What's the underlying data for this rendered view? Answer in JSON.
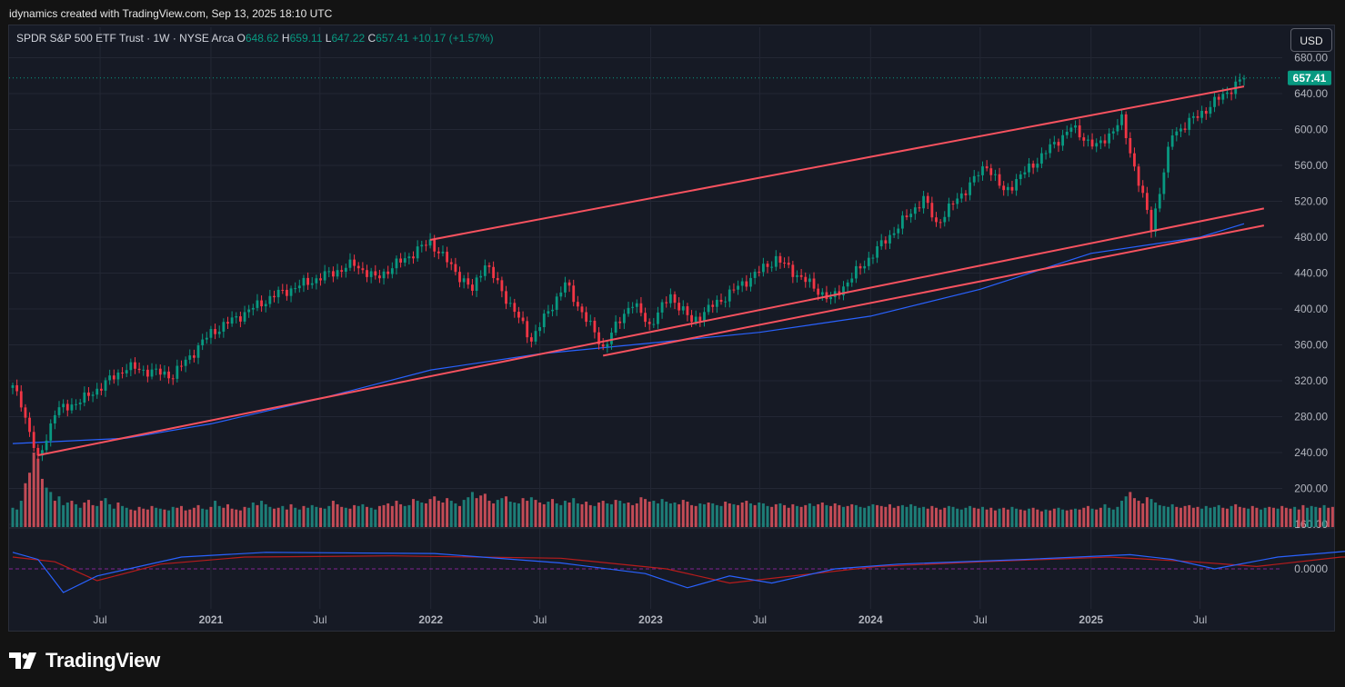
{
  "credit": "idynamics created with TradingView.com, Sep 13, 2025 18:10 UTC",
  "brand": {
    "name": "TradingView",
    "logo_icon": "tradingview-logo-icon"
  },
  "legend": {
    "title": "SPDR S&P 500 ETF Trust · 1W · NYSE Arca",
    "o_label": "O",
    "o": "648.62",
    "h_label": "H",
    "h": "659.11",
    "l_label": "L",
    "l": "647.22",
    "c_label": "C",
    "c": "657.41",
    "change": "+10.17 (+1.57%)"
  },
  "currency_button": "USD",
  "colors": {
    "up": "#089981",
    "down": "#f23645",
    "ma": "#2962ff",
    "trend": "#f7525f",
    "macd": "#2962ff",
    "signal": "#b71c1c",
    "background": "#161a25"
  },
  "chart_data": {
    "type": "candlestick",
    "interval": "1W",
    "y_ticks": [
      680,
      640,
      600,
      560,
      520,
      480,
      440,
      400,
      360,
      320,
      280,
      240,
      200,
      160
    ],
    "y_tick_labels": [
      "680.00",
      "640.00",
      "600.00",
      "560.00",
      "520.00",
      "480.00",
      "440.00",
      "400.00",
      "360.00",
      "320.00",
      "280.00",
      "240.00",
      "200.00",
      "160.00"
    ],
    "last_price": 657.41,
    "last_price_label": "657.41",
    "zero_tick_label": "0.0000",
    "x_ticks": [
      {
        "label": "Jul",
        "date": "2020-07"
      },
      {
        "label": "2021",
        "date": "2021-01"
      },
      {
        "label": "Jul",
        "date": "2021-07"
      },
      {
        "label": "2022",
        "date": "2022-01"
      },
      {
        "label": "Jul",
        "date": "2022-07"
      },
      {
        "label": "2023",
        "date": "2023-01"
      },
      {
        "label": "Jul",
        "date": "2023-07"
      },
      {
        "label": "2024",
        "date": "2024-01"
      },
      {
        "label": "Jul",
        "date": "2024-07"
      },
      {
        "label": "2025",
        "date": "2025-01"
      },
      {
        "label": "Jul",
        "date": "2025-07"
      }
    ],
    "price_path": [
      [
        "2020-02-07",
        312
      ],
      [
        "2020-02-21",
        296
      ],
      [
        "2020-03-20",
        230
      ],
      [
        "2020-04-17",
        285
      ],
      [
        "2020-06-05",
        300
      ],
      [
        "2020-08-14",
        335
      ],
      [
        "2020-10-30",
        326
      ],
      [
        "2020-12-31",
        373
      ],
      [
        "2021-04-16",
        415
      ],
      [
        "2021-08-27",
        450
      ],
      [
        "2021-10-01",
        434
      ],
      [
        "2021-12-31",
        475
      ],
      [
        "2022-03-11",
        420
      ],
      [
        "2022-03-31",
        452
      ],
      [
        "2022-06-17",
        366
      ],
      [
        "2022-08-12",
        428
      ],
      [
        "2022-10-14",
        357
      ],
      [
        "2022-11-30",
        408
      ],
      [
        "2022-12-30",
        382
      ],
      [
        "2023-02-03",
        415
      ],
      [
        "2023-03-10",
        386
      ],
      [
        "2023-07-28",
        456
      ],
      [
        "2023-10-27",
        410
      ],
      [
        "2024-03-29",
        523
      ],
      [
        "2024-04-19",
        495
      ],
      [
        "2024-07-12",
        561
      ],
      [
        "2024-08-09",
        530
      ],
      [
        "2024-11-29",
        602
      ],
      [
        "2025-01-10",
        580
      ],
      [
        "2025-02-21",
        610
      ],
      [
        "2025-04-11",
        490
      ],
      [
        "2025-05-16",
        595
      ],
      [
        "2025-06-27",
        615
      ],
      [
        "2025-09-12",
        657.41
      ]
    ],
    "moving_average": [
      [
        "2020-02-07",
        250
      ],
      [
        "2020-08-14",
        256
      ],
      [
        "2021-01-01",
        272
      ],
      [
        "2021-07-01",
        300
      ],
      [
        "2022-01-01",
        332
      ],
      [
        "2022-07-01",
        350
      ],
      [
        "2023-01-01",
        362
      ],
      [
        "2023-07-01",
        374
      ],
      [
        "2024-01-01",
        392
      ],
      [
        "2024-07-01",
        422
      ],
      [
        "2025-01-01",
        462
      ],
      [
        "2025-07-01",
        480
      ],
      [
        "2025-09-12",
        495
      ]
    ],
    "trendlines": [
      {
        "name": "upper-channel",
        "from": [
          "2021-12-31",
          477
        ],
        "to": [
          "2025-09-12",
          648
        ]
      },
      {
        "name": "lower-channel-1",
        "from": [
          "2020-03-20",
          237
        ],
        "to": [
          "2025-10-15",
          512
        ]
      },
      {
        "name": "lower-channel-2",
        "from": [
          "2022-10-14",
          348
        ],
        "to": [
          "2025-10-15",
          493
        ]
      }
    ],
    "volume": {
      "start": "2020-02-07",
      "week_step": 1,
      "values": [
        0.22,
        0.2,
        0.3,
        0.5,
        0.62,
        0.85,
        0.78,
        0.55,
        0.45,
        0.4,
        0.3,
        0.35,
        0.25,
        0.28,
        0.3,
        0.26,
        0.22,
        0.28,
        0.31,
        0.25,
        0.24,
        0.3,
        0.33,
        0.26,
        0.21,
        0.28,
        0.24,
        0.22,
        0.2,
        0.19,
        0.23,
        0.21,
        0.2,
        0.24,
        0.22,
        0.21,
        0.2,
        0.19,
        0.23,
        0.22,
        0.24,
        0.19,
        0.2,
        0.22,
        0.25,
        0.21,
        0.2,
        0.23,
        0.3,
        0.24,
        0.22,
        0.26,
        0.21,
        0.2,
        0.19,
        0.23,
        0.22,
        0.28,
        0.25,
        0.3,
        0.26,
        0.23,
        0.21,
        0.22,
        0.24,
        0.2,
        0.26,
        0.22,
        0.2,
        0.24,
        0.22,
        0.25,
        0.23,
        0.22,
        0.21,
        0.24,
        0.3,
        0.26,
        0.23,
        0.22,
        0.21,
        0.25,
        0.24,
        0.26,
        0.23,
        0.22,
        0.2,
        0.24,
        0.25,
        0.27,
        0.24,
        0.3,
        0.26,
        0.24,
        0.25,
        0.32,
        0.3,
        0.28,
        0.27,
        0.32,
        0.35,
        0.3,
        0.28,
        0.33,
        0.3,
        0.27,
        0.24,
        0.31,
        0.34,
        0.4,
        0.33,
        0.36,
        0.38,
        0.3,
        0.27,
        0.31,
        0.33,
        0.35,
        0.29,
        0.28,
        0.27,
        0.33,
        0.3,
        0.34,
        0.31,
        0.28,
        0.26,
        0.29,
        0.32,
        0.27,
        0.25,
        0.3,
        0.28,
        0.33,
        0.27,
        0.26,
        0.29,
        0.25,
        0.24,
        0.28,
        0.3,
        0.27,
        0.26,
        0.31,
        0.3,
        0.27,
        0.28,
        0.25,
        0.27,
        0.34,
        0.32,
        0.29,
        0.3,
        0.27,
        0.32,
        0.29,
        0.27,
        0.28,
        0.26,
        0.31,
        0.29,
        0.25,
        0.24,
        0.27,
        0.26,
        0.28,
        0.27,
        0.25,
        0.24,
        0.29,
        0.27,
        0.26,
        0.25,
        0.28,
        0.3,
        0.27,
        0.25,
        0.28,
        0.27,
        0.24,
        0.23,
        0.26,
        0.27,
        0.25,
        0.22,
        0.26,
        0.24,
        0.23,
        0.25,
        0.27,
        0.24,
        0.26,
        0.28,
        0.25,
        0.24,
        0.27,
        0.25,
        0.23,
        0.24,
        0.26,
        0.25,
        0.23,
        0.22,
        0.24,
        0.26,
        0.25,
        0.24,
        0.23,
        0.26,
        0.22,
        0.24,
        0.25,
        0.23,
        0.26,
        0.24,
        0.22,
        0.23,
        0.21,
        0.24,
        0.22,
        0.2,
        0.22,
        0.24,
        0.23,
        0.21,
        0.2,
        0.22,
        0.24,
        0.22,
        0.21,
        0.23,
        0.2,
        0.22,
        0.19,
        0.21,
        0.22,
        0.2,
        0.23,
        0.21,
        0.2,
        0.19,
        0.21,
        0.22,
        0.2,
        0.18,
        0.2,
        0.19,
        0.21,
        0.22,
        0.2,
        0.19,
        0.2,
        0.21,
        0.2,
        0.22,
        0.24,
        0.21,
        0.2,
        0.22,
        0.26,
        0.22,
        0.2,
        0.23,
        0.3,
        0.35,
        0.4,
        0.33,
        0.3,
        0.27,
        0.34,
        0.32,
        0.28,
        0.25,
        0.24,
        0.23,
        0.26,
        0.23,
        0.22,
        0.24,
        0.25,
        0.22,
        0.23,
        0.21,
        0.24,
        0.22,
        0.23,
        0.25,
        0.22,
        0.21,
        0.24,
        0.26,
        0.23,
        0.22,
        0.21,
        0.24,
        0.22,
        0.2,
        0.22,
        0.23,
        0.22,
        0.21,
        0.24,
        0.22,
        0.21,
        0.23,
        0.2,
        0.25,
        0.22,
        0.24,
        0.23,
        0.22,
        0.25,
        0.22,
        0.23
      ]
    },
    "macd": {
      "start": "2020-02-07",
      "macd_line": [
        [
          0,
          0.7
        ],
        [
          6,
          0.4
        ],
        [
          12,
          -1.0
        ],
        [
          20,
          -0.3
        ],
        [
          40,
          0.5
        ],
        [
          60,
          0.7
        ],
        [
          100,
          0.65
        ],
        [
          130,
          0.25
        ],
        [
          150,
          -0.2
        ],
        [
          160,
          -0.8
        ],
        [
          170,
          -0.3
        ],
        [
          180,
          -0.6
        ],
        [
          195,
          0.0
        ],
        [
          210,
          0.2
        ],
        [
          240,
          0.4
        ],
        [
          265,
          0.6
        ],
        [
          275,
          0.4
        ],
        [
          285,
          0.0
        ],
        [
          300,
          0.5
        ],
        [
          320,
          0.8
        ],
        [
          345,
          0.7
        ],
        [
          370,
          0.6
        ],
        [
          390,
          0.5
        ],
        [
          405,
          0.0
        ],
        [
          412,
          -0.9
        ],
        [
          420,
          -0.5
        ],
        [
          430,
          0.5
        ],
        [
          440,
          0.8
        ],
        [
          450,
          0.8
        ]
      ],
      "signal_line": [
        [
          0,
          0.5
        ],
        [
          10,
          0.3
        ],
        [
          20,
          -0.5
        ],
        [
          35,
          0.2
        ],
        [
          55,
          0.5
        ],
        [
          90,
          0.55
        ],
        [
          130,
          0.45
        ],
        [
          155,
          0.0
        ],
        [
          170,
          -0.6
        ],
        [
          190,
          -0.2
        ],
        [
          205,
          0.1
        ],
        [
          230,
          0.3
        ],
        [
          260,
          0.5
        ],
        [
          280,
          0.3
        ],
        [
          295,
          0.1
        ],
        [
          315,
          0.5
        ],
        [
          345,
          0.65
        ],
        [
          370,
          0.6
        ],
        [
          395,
          0.5
        ],
        [
          415,
          -0.4
        ],
        [
          425,
          0.1
        ],
        [
          440,
          0.6
        ],
        [
          450,
          0.75
        ]
      ]
    }
  }
}
